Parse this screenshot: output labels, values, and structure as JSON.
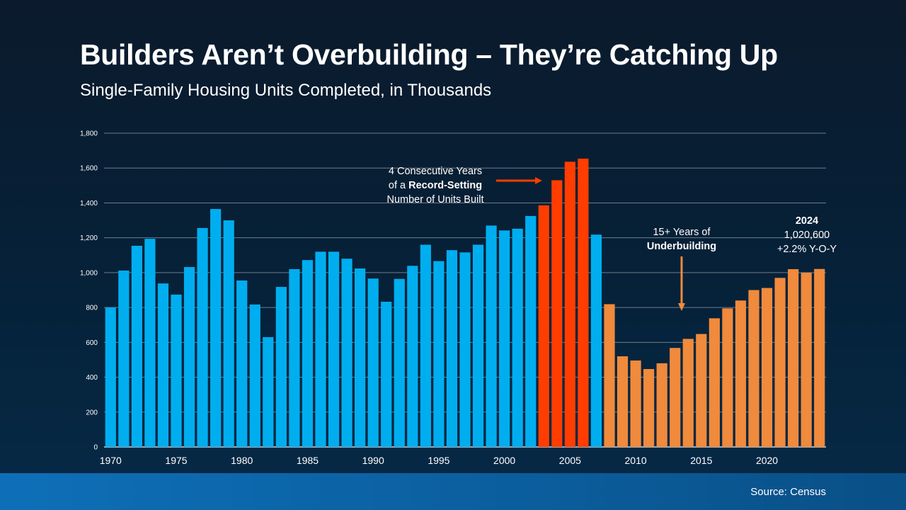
{
  "header": {
    "title": "Builders Aren’t Overbuilding – They’re Catching Up",
    "subtitle": "Single-Family Housing Units Completed, in Thousands"
  },
  "chart_data": {
    "type": "bar",
    "title": "Builders Aren’t Overbuilding – They’re Catching Up",
    "subtitle": "Single-Family Housing Units Completed, in Thousands",
    "xlabel": "",
    "ylabel": "",
    "ylim": [
      0,
      1800
    ],
    "yticks": [
      "0",
      "200",
      "400",
      "600",
      "800",
      "1,000",
      "1,200",
      "1,400",
      "1,600",
      "1,800"
    ],
    "xticks": [
      "1970",
      "1975",
      "1980",
      "1985",
      "1990",
      "1995",
      "2000",
      "2005",
      "2010",
      "2015",
      "2020"
    ],
    "grid": true,
    "categories": [
      1970,
      1971,
      1972,
      1973,
      1974,
      1975,
      1976,
      1977,
      1978,
      1979,
      1980,
      1981,
      1982,
      1983,
      1984,
      1985,
      1986,
      1987,
      1988,
      1989,
      1990,
      1991,
      1992,
      1993,
      1994,
      1995,
      1996,
      1997,
      1998,
      1999,
      2000,
      2001,
      2002,
      2003,
      2004,
      2005,
      2006,
      2007,
      2008,
      2009,
      2010,
      2011,
      2012,
      2013,
      2014,
      2015,
      2016,
      2017,
      2018,
      2019,
      2020,
      2021,
      2022,
      2023,
      2024
    ],
    "values": [
      800,
      1012,
      1154,
      1194,
      938,
      874,
      1032,
      1256,
      1365,
      1300,
      955,
      817,
      630,
      918,
      1020,
      1072,
      1120,
      1120,
      1080,
      1024,
      966,
      833,
      964,
      1039,
      1160,
      1066,
      1129,
      1116,
      1160,
      1270,
      1242,
      1252,
      1325,
      1386,
      1530,
      1636,
      1654,
      1218,
      819,
      520,
      496,
      447,
      480,
      568,
      620,
      648,
      738,
      795,
      840,
      900,
      912,
      970,
      1020,
      1000,
      1021
    ],
    "colors": {
      "normal": "#00aeef",
      "record": "#ff3d00",
      "underbuilding": "#f08a3c"
    },
    "record_years": [
      2003,
      2004,
      2005,
      2006
    ],
    "underbuilding_from": 2008,
    "annotations": {
      "record": {
        "line1": "4 Consecutive Years",
        "line2_pre": "of a ",
        "line2_bold": "Record-Setting",
        "line3": "Number of Units Built"
      },
      "under": {
        "line1": "15+ Years of",
        "line2_bold": "Underbuilding"
      },
      "latest": {
        "year": "2024",
        "value": "1,020,600",
        "change": "+2.2% Y-O-Y"
      }
    }
  },
  "footer": {
    "source": "Source: Census"
  }
}
